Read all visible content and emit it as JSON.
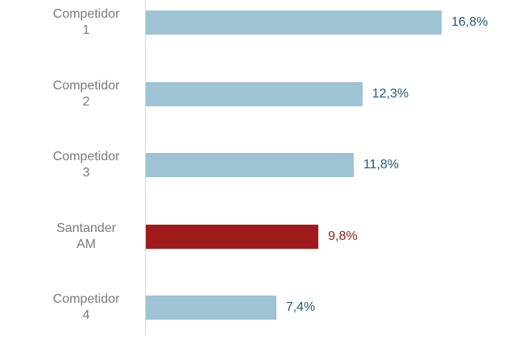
{
  "chart_data": {
    "type": "bar",
    "orientation": "horizontal",
    "categories": [
      "Competidor 1",
      "Competidor 2",
      "Competidor 3",
      "Santander AM",
      "Competidor 4"
    ],
    "values": [
      16.8,
      12.3,
      11.8,
      9.8,
      7.4
    ],
    "value_labels": [
      "16,8%",
      "12,3%",
      "11,8%",
      "9,8%",
      "7,4%"
    ],
    "colors": [
      "#9dc3d4",
      "#9dc3d4",
      "#9dc3d4",
      "#a01c1c",
      "#9dc3d4"
    ],
    "label_colors": [
      "#1f5a73",
      "#1f5a73",
      "#1f5a73",
      "#a01c1c",
      "#1f5a73"
    ]
  }
}
